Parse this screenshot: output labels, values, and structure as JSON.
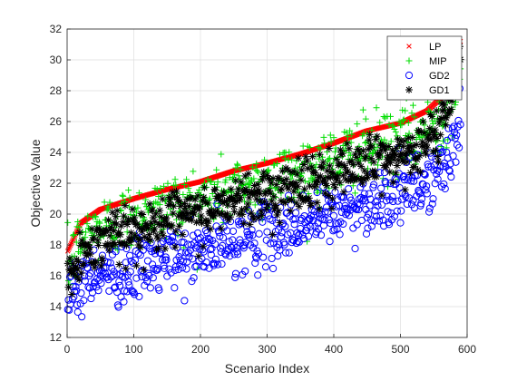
{
  "chart_data": {
    "type": "scatter",
    "title": "",
    "xlabel": "Scenario Index",
    "ylabel": "Objective Value",
    "xlim": [
      0,
      600
    ],
    "ylim": [
      12,
      32
    ],
    "xticks": [
      0,
      100,
      200,
      300,
      400,
      500,
      600
    ],
    "yticks": [
      12,
      14,
      16,
      18,
      20,
      22,
      24,
      26,
      28,
      30,
      32
    ],
    "grid": true,
    "legend_position": "top-right",
    "n_points": 590,
    "series": [
      {
        "name": "LP",
        "marker": "x",
        "color": "#ff0000",
        "description": "sorted ascending baseline",
        "trend_x": [
          0,
          20,
          50,
          100,
          150,
          200,
          250,
          300,
          350,
          400,
          450,
          500,
          540,
          570,
          585,
          589
        ],
        "trend_y": [
          17.5,
          19.4,
          20.3,
          21.0,
          21.6,
          22.1,
          22.8,
          23.3,
          23.9,
          24.6,
          25.4,
          25.9,
          26.7,
          27.9,
          29.8,
          31.2
        ]
      },
      {
        "name": "MIP",
        "marker": "+",
        "color": "#00dd00",
        "description": "approx. 1.2 below LP on average",
        "offset_mean": -1.2,
        "spread": 1.1
      },
      {
        "name": "GD2",
        "marker": "o",
        "color": "#0000ff",
        "description": "approx. 4.6 below LP on average",
        "offset_mean": -4.6,
        "spread": 1.0
      },
      {
        "name": "GD1",
        "marker": "*",
        "color": "#000000",
        "description": "approx. 2.1 below LP on average",
        "offset_mean": -2.1,
        "spread": 0.9
      }
    ]
  }
}
